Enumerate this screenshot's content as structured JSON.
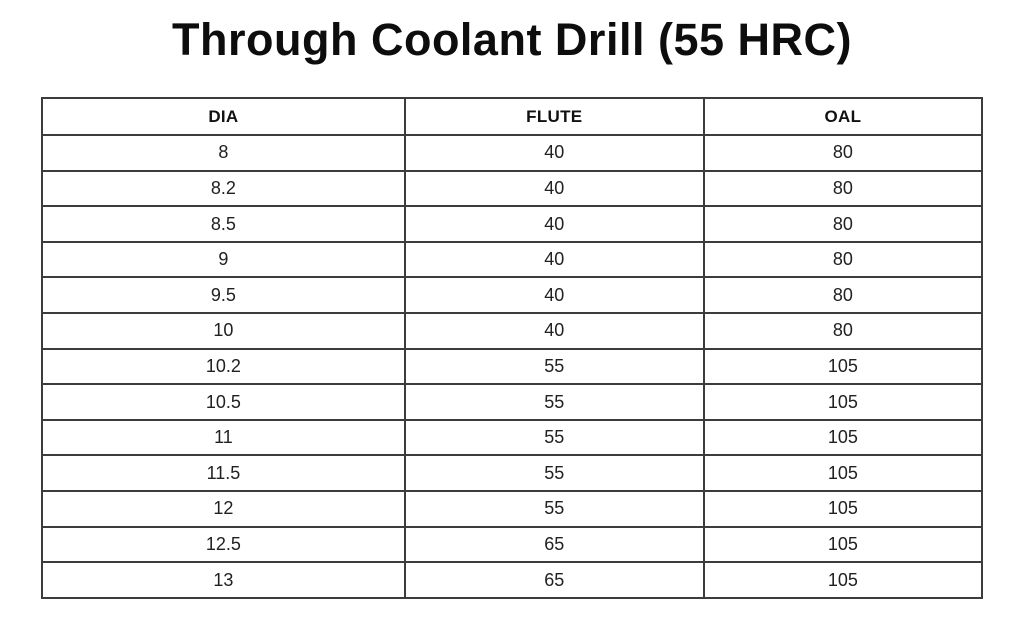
{
  "page": {
    "title": "Through Coolant Drill (55 HRC)"
  },
  "chart_data": {
    "type": "table",
    "title": "Through Coolant Drill (55 HRC)",
    "columns": [
      "DIA",
      "FLUTE",
      "OAL"
    ],
    "rows": [
      [
        "8",
        "40",
        "80"
      ],
      [
        "8.2",
        "40",
        "80"
      ],
      [
        "8.5",
        "40",
        "80"
      ],
      [
        "9",
        "40",
        "80"
      ],
      [
        "9.5",
        "40",
        "80"
      ],
      [
        "10",
        "40",
        "80"
      ],
      [
        "10.2",
        "55",
        "105"
      ],
      [
        "10.5",
        "55",
        "105"
      ],
      [
        "11",
        "55",
        "105"
      ],
      [
        "11.5",
        "55",
        "105"
      ],
      [
        "12",
        "55",
        "105"
      ],
      [
        "12.5",
        "65",
        "105"
      ],
      [
        "13",
        "65",
        "105"
      ]
    ]
  },
  "colors": {
    "border": "#3c3c3c",
    "text": "#212121",
    "title": "#0d0d0d",
    "background": "#ffffff"
  }
}
